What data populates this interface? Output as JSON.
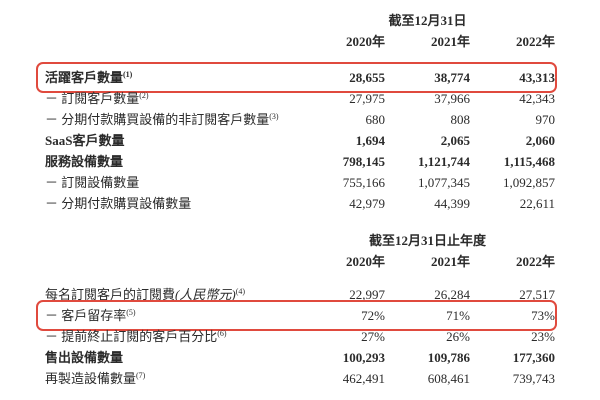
{
  "page": {
    "background": "#ffffff",
    "text_color": "#2b2b2b",
    "highlight_color": "#e04a3e"
  },
  "table1": {
    "period_header": "截至12月31日",
    "year_headers": [
      "2020年",
      "2021年",
      "2022年"
    ],
    "rows": [
      {
        "label": "活躍客戶數量",
        "sup": "(1)",
        "bold": true,
        "highlight": true,
        "values": [
          "28,655",
          "38,774",
          "43,313"
        ]
      },
      {
        "label": "－ 訂閱客戶數量",
        "sup": "(2)",
        "bold": false,
        "values": [
          "27,975",
          "37,966",
          "42,343"
        ]
      },
      {
        "label": "－ 分期付款購買設備的非訂閱客戶數量",
        "sup": "(3)",
        "bold": false,
        "values": [
          "680",
          "808",
          "970"
        ]
      },
      {
        "label": "SaaS客戶數量",
        "sup": "",
        "bold": true,
        "values": [
          "1,694",
          "2,065",
          "2,060"
        ]
      },
      {
        "label": "服務設備數量",
        "sup": "",
        "bold": true,
        "values": [
          "798,145",
          "1,121,744",
          "1,115,468"
        ]
      },
      {
        "label": "－ 訂閱設備數量",
        "sup": "",
        "bold": false,
        "values": [
          "755,166",
          "1,077,345",
          "1,092,857"
        ]
      },
      {
        "label": "－ 分期付款購買設備數量",
        "sup": "",
        "bold": false,
        "values": [
          "42,979",
          "44,399",
          "22,611"
        ]
      }
    ]
  },
  "table2": {
    "period_header": "截至12月31日止年度",
    "year_headers": [
      "2020年",
      "2021年",
      "2022年"
    ],
    "rows": [
      {
        "label": "每名訂閱客戶的訂閱費",
        "label_italic": "(人民幣元)",
        "sup": "(4)",
        "bold": false,
        "values": [
          "22,997",
          "26,284",
          "27,517"
        ]
      },
      {
        "label": "－ 客戶留存率",
        "sup": "(5)",
        "bold": false,
        "highlight": true,
        "values": [
          "72%",
          "71%",
          "73%"
        ]
      },
      {
        "label": "－ 提前終止訂閱的客戶百分比",
        "sup": "(6)",
        "bold": false,
        "values": [
          "27%",
          "26%",
          "23%"
        ]
      },
      {
        "label": "售出設備數量",
        "sup": "",
        "bold": true,
        "values": [
          "100,293",
          "109,786",
          "177,360"
        ]
      },
      {
        "label": "再製造設備數量",
        "sup": "(7)",
        "bold": false,
        "values": [
          "462,491",
          "608,461",
          "739,743"
        ]
      }
    ]
  }
}
